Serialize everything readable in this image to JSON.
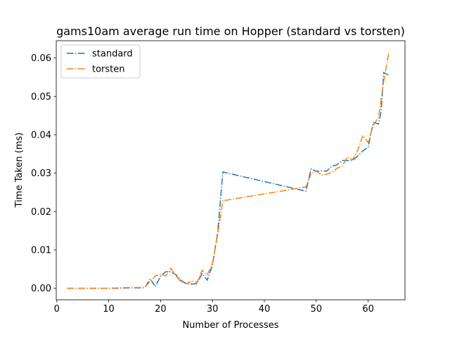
{
  "chart_data": {
    "type": "line",
    "title": "gams10am average run time on Hopper (standard vs torsten)",
    "xlabel": "Number of Processes",
    "ylabel": "Time Taken (ms)",
    "xlim": [
      -0.1,
      67.1
    ],
    "ylim": [
      -0.003,
      0.0645
    ],
    "xticks": [
      0,
      10,
      20,
      30,
      40,
      50,
      60
    ],
    "yticks": [
      0.0,
      0.01,
      0.02,
      0.03,
      0.04,
      0.05,
      0.06
    ],
    "ytick_labels": [
      "0.00",
      "0.01",
      "0.02",
      "0.03",
      "0.04",
      "0.05",
      "0.06"
    ],
    "grid": false,
    "legend_position": "top-left",
    "series": [
      {
        "name": "standard",
        "color": "#1f77b4",
        "linestyle": "dash-dot",
        "points": [
          [
            2,
            0.0
          ],
          [
            4,
            0.0
          ],
          [
            6,
            0.0
          ],
          [
            8,
            0.0
          ],
          [
            10,
            0.0
          ],
          [
            12,
            0.0
          ],
          [
            14,
            0.0001
          ],
          [
            16,
            0.0001
          ],
          [
            17,
            0.0002
          ],
          [
            18,
            0.0025
          ],
          [
            19,
            0.0004
          ],
          [
            20,
            0.0032
          ],
          [
            21,
            0.0043
          ],
          [
            22,
            0.0043
          ],
          [
            23,
            0.0035
          ],
          [
            24,
            0.002
          ],
          [
            25,
            0.0012
          ],
          [
            26,
            0.0011
          ],
          [
            27,
            0.0012
          ],
          [
            28,
            0.0038
          ],
          [
            29,
            0.0021
          ],
          [
            30,
            0.006
          ],
          [
            31,
            0.0145
          ],
          [
            32,
            0.0303
          ],
          [
            48,
            0.0253
          ],
          [
            49,
            0.0311
          ],
          [
            50,
            0.0305
          ],
          [
            51,
            0.0306
          ],
          [
            52,
            0.0305
          ],
          [
            53,
            0.0318
          ],
          [
            54,
            0.0322
          ],
          [
            55,
            0.0333
          ],
          [
            56,
            0.0333
          ],
          [
            57,
            0.0333
          ],
          [
            58,
            0.0345
          ],
          [
            59,
            0.0358
          ],
          [
            60,
            0.0368
          ],
          [
            61,
            0.0432
          ],
          [
            62,
            0.0428
          ],
          [
            62.5,
            0.046
          ],
          [
            63,
            0.0562
          ],
          [
            64,
            0.0555
          ]
        ]
      },
      {
        "name": "torsten",
        "color": "#ff7f0e",
        "linestyle": "dash-dot",
        "points": [
          [
            2,
            0.0
          ],
          [
            4,
            0.0
          ],
          [
            6,
            0.0
          ],
          [
            8,
            0.0
          ],
          [
            10,
            0.0
          ],
          [
            12,
            0.0001
          ],
          [
            14,
            0.0002
          ],
          [
            16,
            0.0002
          ],
          [
            17,
            0.0003
          ],
          [
            18,
            0.0018
          ],
          [
            19,
            0.0032
          ],
          [
            20,
            0.0037
          ],
          [
            21,
            0.0032
          ],
          [
            22,
            0.0052
          ],
          [
            23,
            0.0032
          ],
          [
            24,
            0.0015
          ],
          [
            25,
            0.0012
          ],
          [
            26,
            0.0019
          ],
          [
            27,
            0.0015
          ],
          [
            28,
            0.0047
          ],
          [
            29,
            0.0035
          ],
          [
            30,
            0.0065
          ],
          [
            31,
            0.014
          ],
          [
            32,
            0.0228
          ],
          [
            48,
            0.0264
          ],
          [
            49,
            0.0298
          ],
          [
            50,
            0.0305
          ],
          [
            51,
            0.0295
          ],
          [
            52,
            0.0297
          ],
          [
            53,
            0.0302
          ],
          [
            54,
            0.0313
          ],
          [
            55,
            0.0318
          ],
          [
            56,
            0.0342
          ],
          [
            57,
            0.0335
          ],
          [
            58,
            0.036
          ],
          [
            59,
            0.0398
          ],
          [
            60,
            0.038
          ],
          [
            61,
            0.0425
          ],
          [
            62,
            0.0445
          ],
          [
            63,
            0.054
          ],
          [
            64,
            0.0616
          ]
        ]
      }
    ]
  }
}
